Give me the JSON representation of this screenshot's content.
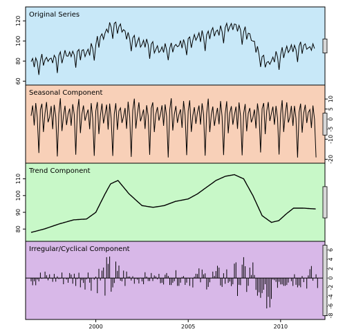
{
  "chart_data": [
    {
      "type": "line",
      "title": "Original Series",
      "y_axis_side": "left",
      "ylim": [
        60,
        130
      ],
      "yticks": [
        60,
        80,
        100,
        120
      ],
      "color_bg": "#c8e8f8",
      "x": [
        1996.5,
        1997.5,
        1998.5,
        1999.5,
        2000.0,
        2000.5,
        2000.9,
        2001.3,
        2001.8,
        2002.5,
        2003.5,
        2004.5,
        2005.5,
        2006.5,
        2007.5,
        2008.3,
        2008.8,
        2009.3,
        2009.7,
        2010.5,
        2011.5,
        2011.9
      ],
      "values": [
        78,
        80,
        85,
        87,
        95,
        106,
        116,
        112,
        102,
        96,
        90,
        94,
        102,
        108,
        115,
        104,
        88,
        76,
        82,
        90,
        92,
        91
      ]
    },
    {
      "type": "line",
      "title": "Seasonal Component",
      "y_axis_side": "right",
      "ylim": [
        -20,
        15
      ],
      "yticks": [
        -20,
        -10,
        -5,
        0,
        5,
        10
      ],
      "color_bg": "#f8d0b8",
      "period_months": 12,
      "pattern": [
        2,
        6,
        -4,
        8,
        1,
        -18,
        4,
        9,
        -6,
        3,
        7,
        -2
      ]
    },
    {
      "type": "line",
      "title": "Trend Component",
      "y_axis_side": "left",
      "ylim": [
        75,
        117
      ],
      "yticks": [
        80,
        90,
        100,
        110
      ],
      "color_bg": "#c8f8c8",
      "x": [
        1996.5,
        1997.2,
        1998.0,
        1998.8,
        1999.5,
        2000.0,
        2000.5,
        2000.8,
        2001.2,
        2001.8,
        2002.5,
        2003.1,
        2003.7,
        2004.3,
        2005.0,
        2005.5,
        2006.0,
        2006.5,
        2007.0,
        2007.5,
        2008.0,
        2008.5,
        2009.0,
        2009.5,
        2009.9,
        2010.3,
        2010.7,
        2011.2,
        2011.9
      ],
      "values": [
        78,
        80,
        83,
        85.5,
        86,
        90,
        101,
        107,
        109,
        101,
        94,
        93,
        94,
        96.5,
        98,
        101,
        105,
        109,
        111.5,
        112.5,
        110,
        100,
        88,
        84,
        85,
        89,
        92.5,
        92.5,
        92
      ]
    },
    {
      "type": "bar",
      "title": "Irregular/Cyclical Component",
      "y_axis_side": "right",
      "ylim": [
        -8,
        7
      ],
      "yticks": [
        -8,
        -6,
        -4,
        -2,
        0,
        2,
        4,
        6
      ],
      "color_bg": "#d8b8e8",
      "x_start": 1996.5,
      "x_end": 2012.0,
      "envelope_x": [
        1996.5,
        1998.0,
        1999.5,
        2000.2,
        2000.8,
        2001.4,
        2002.0,
        2003.0,
        2004.0,
        2005.0,
        2006.0,
        2007.0,
        2007.8,
        2008.3,
        2008.8,
        2009.3,
        2009.8,
        2010.5,
        2011.2,
        2011.9
      ],
      "envelope_y": [
        2,
        1.5,
        2.5,
        3.5,
        5.5,
        3,
        1.5,
        1.2,
        1.5,
        2,
        2.5,
        3,
        4,
        5.5,
        5,
        6,
        3,
        2,
        2.5,
        3
      ]
    }
  ],
  "x_axis": {
    "xlim": [
      1996.2,
      2012.4
    ],
    "ticks": [
      "2000",
      "2005",
      "2010"
    ]
  },
  "colors": {
    "line": "#000000",
    "scalebar_fill": "#d8d8d8"
  }
}
